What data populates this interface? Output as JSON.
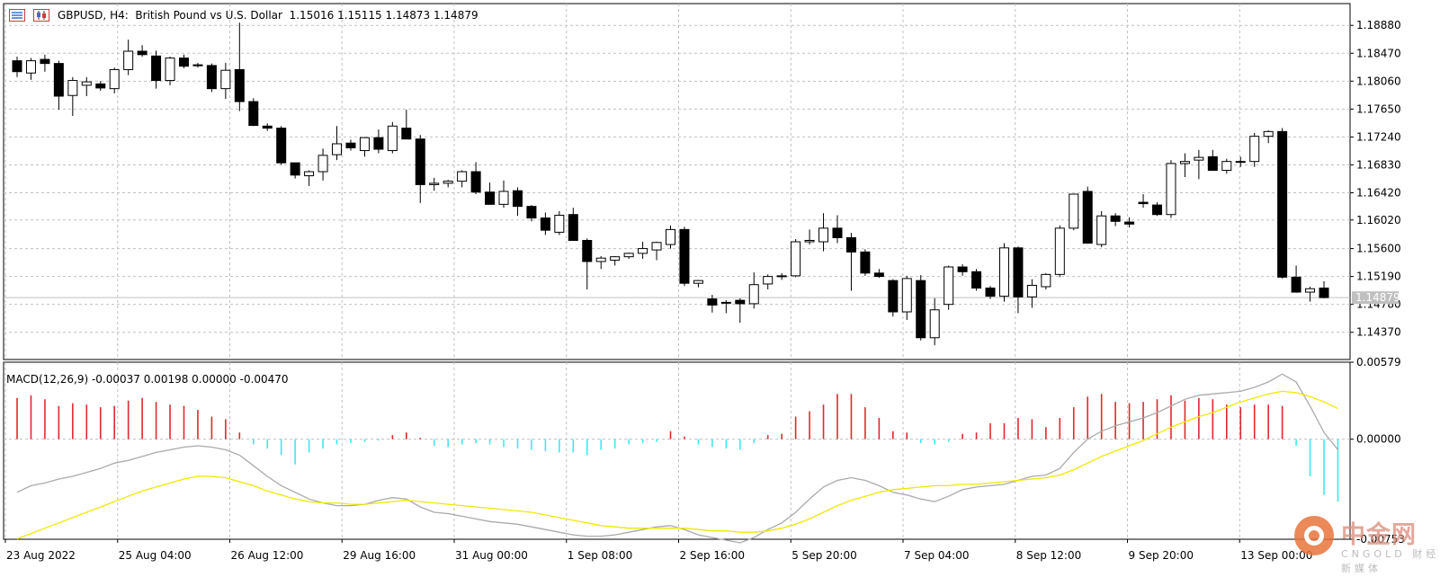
{
  "header": {
    "symbol": "GBPUSD",
    "timeframe": "H4:",
    "description": "British Pound vs U.S. Dollar",
    "open": "1.15016",
    "high": "1.15115",
    "low": "1.14873",
    "close": "1.14879"
  },
  "macd_header": {
    "label": "MACD(12,26,9)",
    "values": "-0.00037 0.00198 0.00000 -0.00470"
  },
  "watermark": {
    "brand": "中金网",
    "sub": "财经新媒体",
    "mark": "CNGOLD"
  },
  "icons": [
    "menu-icon",
    "chart-type-icon"
  ],
  "colors": {
    "bull_body": "#ffffff",
    "bear_body": "#000000",
    "hist_positive": "#e0282e",
    "hist_negative": "#3ee8f0",
    "macd_line": "#aaaaaa",
    "signal_line": "#f0e800",
    "grid": "#c0c0c0"
  },
  "chart_data": [
    {
      "type": "candlestick",
      "title": "GBPUSD, H4: British Pound vs U.S. Dollar",
      "y_ticks": [
        "1.18880",
        "1.18470",
        "1.18060",
        "1.17650",
        "1.17240",
        "1.16830",
        "1.16420",
        "1.16020",
        "1.15600",
        "1.15190",
        "1.14780",
        "1.14370"
      ],
      "ylim": [
        1.1397,
        1.192
      ],
      "current_price_label": "1.14879",
      "current_price": 1.14879,
      "x_labels": [
        "23 Aug 2022",
        "25 Aug 04:00",
        "26 Aug 12:00",
        "29 Aug 16:00",
        "31 Aug 00:00",
        "1 Sep 08:00",
        "2 Sep 16:00",
        "5 Sep 20:00",
        "7 Sep 04:00",
        "8 Sep 12:00",
        "9 Sep 20:00",
        "13 Sep 00:00"
      ],
      "grid": true,
      "ohlc": [
        [
          1.1836,
          1.1842,
          1.1812,
          1.182
        ],
        [
          1.1818,
          1.184,
          1.1808,
          1.1836
        ],
        [
          1.1838,
          1.1845,
          1.182,
          1.1832
        ],
        [
          1.1832,
          1.1836,
          1.1764,
          1.1784
        ],
        [
          1.1785,
          1.1812,
          1.1755,
          1.1807
        ],
        [
          1.18,
          1.1812,
          1.1784,
          1.1805
        ],
        [
          1.1802,
          1.1806,
          1.1792,
          1.1796
        ],
        [
          1.1795,
          1.1826,
          1.1788,
          1.1823
        ],
        [
          1.1823,
          1.1867,
          1.1815,
          1.185
        ],
        [
          1.185,
          1.1859,
          1.1842,
          1.1845
        ],
        [
          1.1843,
          1.1851,
          1.1795,
          1.1807
        ],
        [
          1.1807,
          1.1842,
          1.18,
          1.184
        ],
        [
          1.184,
          1.1845,
          1.1825,
          1.1828
        ],
        [
          1.183,
          1.1833,
          1.1826,
          1.1829
        ],
        [
          1.1829,
          1.1832,
          1.179,
          1.1795
        ],
        [
          1.1795,
          1.1833,
          1.178,
          1.1822
        ],
        [
          1.1823,
          1.1892,
          1.1762,
          1.1776
        ],
        [
          1.1776,
          1.1781,
          1.174,
          1.1741
        ],
        [
          1.174,
          1.1744,
          1.1733,
          1.1737
        ],
        [
          1.1737,
          1.174,
          1.1683,
          1.1686
        ],
        [
          1.1686,
          1.1686,
          1.1663,
          1.1668
        ],
        [
          1.1667,
          1.1675,
          1.1652,
          1.1673
        ],
        [
          1.1673,
          1.1707,
          1.166,
          1.1697
        ],
        [
          1.1698,
          1.174,
          1.169,
          1.1714
        ],
        [
          1.1715,
          1.172,
          1.1704,
          1.1708
        ],
        [
          1.1704,
          1.1724,
          1.1695,
          1.1723
        ],
        [
          1.1723,
          1.1735,
          1.17,
          1.1706
        ],
        [
          1.1704,
          1.1746,
          1.17,
          1.174
        ],
        [
          1.1737,
          1.1764,
          1.1722,
          1.1721
        ],
        [
          1.1721,
          1.1727,
          1.1627,
          1.1654
        ],
        [
          1.1654,
          1.1664,
          1.1645,
          1.1656
        ],
        [
          1.1656,
          1.1661,
          1.165,
          1.1659
        ],
        [
          1.1659,
          1.1675,
          1.165,
          1.1673
        ],
        [
          1.1673,
          1.1687,
          1.164,
          1.1643
        ],
        [
          1.1643,
          1.1657,
          1.1627,
          1.1625
        ],
        [
          1.1625,
          1.166,
          1.162,
          1.1644
        ],
        [
          1.1645,
          1.165,
          1.1608,
          1.1622
        ],
        [
          1.1622,
          1.1624,
          1.16,
          1.1605
        ],
        [
          1.1605,
          1.1613,
          1.158,
          1.1587
        ],
        [
          1.1584,
          1.1615,
          1.158,
          1.1609
        ],
        [
          1.161,
          1.162,
          1.1574,
          1.1572
        ],
        [
          1.1572,
          1.1575,
          1.15,
          1.1541
        ],
        [
          1.1541,
          1.1549,
          1.153,
          1.1546
        ],
        [
          1.1543,
          1.1549,
          1.1535,
          1.1548
        ],
        [
          1.1548,
          1.1554,
          1.1545,
          1.1553
        ],
        [
          1.1553,
          1.157,
          1.1545,
          1.156
        ],
        [
          1.1558,
          1.157,
          1.1543,
          1.1569
        ],
        [
          1.1566,
          1.1594,
          1.156,
          1.1588
        ],
        [
          1.1588,
          1.1592,
          1.1505,
          1.1509
        ],
        [
          1.1509,
          1.1514,
          1.1503,
          1.1513
        ],
        [
          1.1486,
          1.1492,
          1.1466,
          1.1477
        ],
        [
          1.148,
          1.1484,
          1.1465,
          1.1481
        ],
        [
          1.1484,
          1.1487,
          1.1451,
          1.1479
        ],
        [
          1.1479,
          1.1525,
          1.1472,
          1.1507
        ],
        [
          1.1508,
          1.1522,
          1.15,
          1.1519
        ],
        [
          1.1519,
          1.1524,
          1.1514,
          1.152
        ],
        [
          1.152,
          1.1574,
          1.1518,
          1.157
        ],
        [
          1.157,
          1.1588,
          1.1566,
          1.1572
        ],
        [
          1.157,
          1.1612,
          1.1556,
          1.159
        ],
        [
          1.159,
          1.1609,
          1.1568,
          1.1576
        ],
        [
          1.1576,
          1.1583,
          1.1498,
          1.1555
        ],
        [
          1.1555,
          1.1559,
          1.152,
          1.1524
        ],
        [
          1.1524,
          1.153,
          1.1517,
          1.1519
        ],
        [
          1.1513,
          1.1515,
          1.146,
          1.1467
        ],
        [
          1.1467,
          1.152,
          1.1455,
          1.1516
        ],
        [
          1.1513,
          1.1521,
          1.1425,
          1.1429
        ],
        [
          1.1429,
          1.1487,
          1.1418,
          1.147
        ],
        [
          1.1478,
          1.1535,
          1.147,
          1.1533
        ],
        [
          1.1533,
          1.1537,
          1.152,
          1.1526
        ],
        [
          1.1526,
          1.153,
          1.1498,
          1.1502
        ],
        [
          1.1502,
          1.1505,
          1.1486,
          1.149
        ],
        [
          1.149,
          1.1568,
          1.1482,
          1.1561
        ],
        [
          1.1561,
          1.1563,
          1.1465,
          1.1489
        ],
        [
          1.1489,
          1.1515,
          1.1473,
          1.1506
        ],
        [
          1.1504,
          1.1524,
          1.15,
          1.1522
        ],
        [
          1.1522,
          1.1594,
          1.1518,
          1.159
        ],
        [
          1.159,
          1.1639,
          1.1587,
          1.164
        ],
        [
          1.1644,
          1.1651,
          1.1567,
          1.1568
        ],
        [
          1.1566,
          1.1615,
          1.1562,
          1.1608
        ],
        [
          1.1608,
          1.1612,
          1.1593,
          1.16
        ],
        [
          1.1599,
          1.1606,
          1.1591,
          1.1596
        ],
        [
          1.1628,
          1.164,
          1.162,
          1.1626
        ],
        [
          1.1624,
          1.1628,
          1.1608,
          1.161
        ],
        [
          1.161,
          1.169,
          1.1605,
          1.1685
        ],
        [
          1.1685,
          1.17,
          1.1665,
          1.1688
        ],
        [
          1.169,
          1.1705,
          1.1662,
          1.1694
        ],
        [
          1.1695,
          1.1705,
          1.1675,
          1.1675
        ],
        [
          1.1675,
          1.1692,
          1.167,
          1.1688
        ],
        [
          1.1687,
          1.1695,
          1.168,
          1.1688
        ],
        [
          1.1688,
          1.173,
          1.168,
          1.1725
        ],
        [
          1.1725,
          1.1734,
          1.1715,
          1.1732
        ],
        [
          1.1732,
          1.1737,
          1.1516,
          1.1518
        ],
        [
          1.1518,
          1.1535,
          1.1495,
          1.1496
        ],
        [
          1.1496,
          1.1504,
          1.1482,
          1.1501
        ],
        [
          1.1502,
          1.1512,
          1.1487,
          1.1488
        ]
      ]
    },
    {
      "type": "macd",
      "title": "MACD(12,26,9)",
      "y_ticks": [
        "0.00579",
        "0.00000",
        "-0.00753"
      ],
      "ylim": [
        -0.00753,
        0.00579
      ],
      "histogram": [
        0.0031,
        0.0033,
        0.003,
        0.0025,
        0.0027,
        0.0026,
        0.0024,
        0.0025,
        0.0029,
        0.0031,
        0.0028,
        0.0026,
        0.0025,
        0.0022,
        0.0017,
        0.0015,
        0.0005,
        -0.0004,
        -0.0007,
        -0.0012,
        -0.0019,
        -0.001,
        -0.0007,
        -0.0004,
        -0.0003,
        -0.0002,
        -0.0001,
        0.0003,
        0.0005,
        0.0001,
        -0.0005,
        -0.0006,
        -0.0004,
        -0.0003,
        -0.0004,
        -0.0006,
        -0.0007,
        -0.0008,
        -0.0009,
        -0.001,
        -0.001,
        -0.0012,
        -0.0008,
        -0.0007,
        -0.0004,
        -0.0003,
        -0.0002,
        0.0006,
        0.0002,
        -0.0004,
        -0.0006,
        -0.0007,
        -0.0008,
        -0.0003,
        0.0003,
        0.0004,
        0.0017,
        0.0021,
        0.0026,
        0.0034,
        0.0034,
        0.0024,
        0.0016,
        0.0006,
        0.0005,
        -0.0003,
        -0.0004,
        -0.0002,
        0.0004,
        0.0005,
        0.0012,
        0.0012,
        0.0016,
        0.0015,
        0.0009,
        0.0016,
        0.0024,
        0.0032,
        0.0034,
        0.0028,
        0.0027,
        0.0028,
        0.003,
        0.0033,
        0.0029,
        0.0031,
        0.003,
        0.0026,
        0.0024,
        0.0026,
        0.0026,
        0.0025,
        -0.0005,
        -0.0028,
        -0.0042,
        -0.0047
      ],
      "macd_line": [
        -0.004,
        -0.0035,
        -0.0033,
        -0.003,
        -0.0028,
        -0.0025,
        -0.0022,
        -0.0018,
        -0.0016,
        -0.0013,
        -0.001,
        -0.0008,
        -0.0006,
        -0.0005,
        -0.0006,
        -0.0008,
        -0.0012,
        -0.002,
        -0.0028,
        -0.0035,
        -0.004,
        -0.0045,
        -0.0048,
        -0.005,
        -0.005,
        -0.0049,
        -0.0046,
        -0.0044,
        -0.0045,
        -0.0051,
        -0.0055,
        -0.0056,
        -0.0058,
        -0.006,
        -0.0062,
        -0.0063,
        -0.0064,
        -0.0066,
        -0.0068,
        -0.007,
        -0.0072,
        -0.0073,
        -0.0073,
        -0.0072,
        -0.007,
        -0.0068,
        -0.0066,
        -0.0065,
        -0.0068,
        -0.0072,
        -0.0074,
        -0.0076,
        -0.0078,
        -0.0074,
        -0.0068,
        -0.0063,
        -0.0055,
        -0.0045,
        -0.0036,
        -0.0031,
        -0.0029,
        -0.0031,
        -0.0035,
        -0.004,
        -0.0042,
        -0.0045,
        -0.0047,
        -0.0043,
        -0.0038,
        -0.0036,
        -0.0035,
        -0.0034,
        -0.0031,
        -0.0028,
        -0.0027,
        -0.0022,
        -0.001,
        0.0,
        0.0006,
        0.001,
        0.0013,
        0.0016,
        0.002,
        0.0025,
        0.003,
        0.0033,
        0.0034,
        0.0035,
        0.0036,
        0.0039,
        0.0043,
        0.0049,
        0.0043,
        0.0025,
        0.0005,
        -0.0008
      ],
      "signal_line": [
        -0.0075,
        -0.0071,
        -0.0067,
        -0.0063,
        -0.0059,
        -0.0055,
        -0.0051,
        -0.0047,
        -0.0043,
        -0.0039,
        -0.0036,
        -0.0033,
        -0.003,
        -0.0028,
        -0.0028,
        -0.0029,
        -0.0032,
        -0.0035,
        -0.0039,
        -0.0042,
        -0.0045,
        -0.0047,
        -0.0048,
        -0.0048,
        -0.0049,
        -0.0049,
        -0.0048,
        -0.0047,
        -0.0046,
        -0.0047,
        -0.0048,
        -0.0049,
        -0.005,
        -0.0051,
        -0.0052,
        -0.0053,
        -0.0054,
        -0.0055,
        -0.0057,
        -0.0059,
        -0.0061,
        -0.0063,
        -0.0065,
        -0.0066,
        -0.0067,
        -0.0067,
        -0.0067,
        -0.0067,
        -0.0067,
        -0.0068,
        -0.0069,
        -0.0069,
        -0.007,
        -0.007,
        -0.0069,
        -0.0067,
        -0.0064,
        -0.006,
        -0.0055,
        -0.005,
        -0.0046,
        -0.0043,
        -0.004,
        -0.0038,
        -0.0037,
        -0.0036,
        -0.0035,
        -0.0035,
        -0.0034,
        -0.0034,
        -0.0033,
        -0.0032,
        -0.0031,
        -0.003,
        -0.0029,
        -0.0027,
        -0.0023,
        -0.0018,
        -0.0013,
        -0.0009,
        -0.0005,
        -0.0001,
        0.0004,
        0.0009,
        0.0013,
        0.0017,
        0.002,
        0.0024,
        0.0028,
        0.0031,
        0.0034,
        0.0036,
        0.0035,
        0.0032,
        0.0028,
        0.0023
      ]
    }
  ]
}
